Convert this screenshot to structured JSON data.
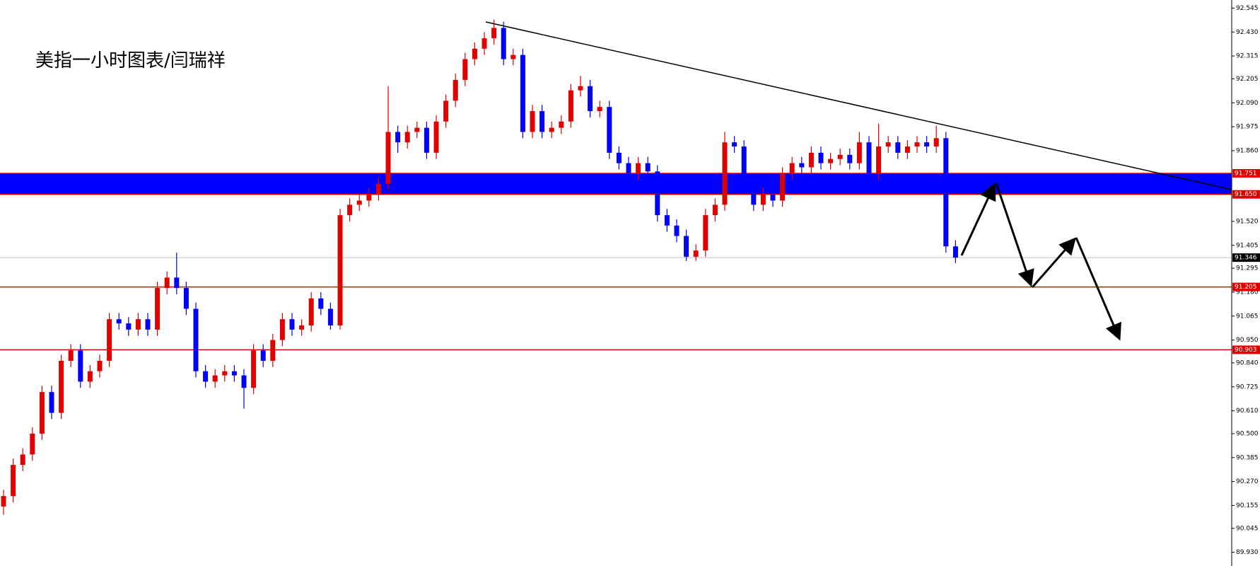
{
  "chart_data": {
    "type": "candlestick",
    "title": "美指一小时图表/闫瑞祥",
    "open": [
      90.15,
      90.2,
      90.35,
      90.4,
      90.5,
      90.7,
      90.6,
      90.85,
      90.9,
      90.75,
      90.8,
      90.85,
      91.05,
      91.03,
      91.0,
      91.05,
      91.0,
      91.2,
      91.25,
      91.2,
      91.1,
      90.8,
      90.75,
      90.78,
      90.8,
      90.78,
      90.72,
      90.9,
      90.85,
      90.95,
      91.05,
      91.0,
      91.02,
      91.15,
      91.1,
      91.02,
      91.55,
      91.6,
      91.62,
      91.65,
      91.7,
      91.95,
      91.9,
      91.95,
      91.97,
      91.85,
      92.0,
      92.1,
      92.2,
      92.3,
      92.35,
      92.4,
      92.45,
      92.3,
      92.32,
      91.95,
      92.05,
      91.95,
      91.97,
      92.0,
      92.15,
      92.17,
      92.05,
      92.07,
      91.85,
      91.8,
      91.75,
      91.8,
      91.76,
      91.55,
      91.5,
      91.45,
      91.35,
      91.38,
      91.55,
      91.6,
      91.9,
      91.88,
      91.7,
      91.6,
      91.65,
      91.62,
      91.75,
      91.8,
      91.78,
      91.85,
      91.8,
      91.82,
      91.84,
      91.8,
      91.9,
      91.75,
      91.88,
      91.9,
      91.85,
      91.88,
      91.9,
      91.88,
      91.92,
      91.4
    ],
    "high": [
      90.23,
      90.38,
      90.43,
      90.53,
      90.73,
      90.73,
      90.88,
      90.93,
      90.93,
      90.83,
      90.88,
      91.08,
      91.08,
      91.06,
      91.08,
      91.08,
      91.23,
      91.28,
      91.37,
      91.23,
      91.13,
      90.83,
      90.81,
      90.83,
      90.83,
      90.81,
      90.93,
      90.93,
      90.98,
      91.08,
      91.08,
      91.05,
      91.18,
      91.18,
      91.13,
      91.58,
      91.63,
      91.65,
      91.68,
      91.73,
      92.17,
      91.98,
      91.98,
      92.0,
      92.0,
      92.03,
      92.13,
      92.23,
      92.33,
      92.38,
      92.43,
      92.49,
      92.48,
      92.35,
      92.35,
      92.08,
      92.08,
      92.0,
      92.03,
      92.18,
      92.22,
      92.2,
      92.1,
      92.1,
      91.88,
      91.83,
      91.83,
      91.83,
      91.79,
      91.58,
      91.53,
      91.48,
      91.41,
      91.58,
      91.63,
      91.95,
      91.93,
      91.91,
      91.73,
      91.68,
      91.68,
      91.78,
      91.83,
      91.83,
      91.88,
      91.88,
      91.85,
      91.87,
      91.87,
      91.95,
      91.93,
      91.99,
      91.93,
      91.93,
      91.91,
      91.93,
      91.93,
      91.98,
      91.95,
      91.43
    ],
    "low": [
      90.11,
      90.17,
      90.32,
      90.37,
      90.47,
      90.57,
      90.57,
      90.82,
      90.72,
      90.72,
      90.77,
      90.82,
      91.0,
      90.97,
      90.97,
      90.97,
      90.97,
      91.17,
      91.17,
      91.07,
      90.77,
      90.72,
      90.72,
      90.75,
      90.75,
      90.62,
      90.69,
      90.82,
      90.82,
      90.92,
      90.97,
      90.97,
      90.99,
      91.07,
      91.0,
      91.0,
      91.52,
      91.57,
      91.59,
      91.62,
      91.67,
      91.85,
      91.87,
      91.92,
      91.82,
      91.82,
      91.97,
      92.07,
      92.17,
      92.27,
      92.32,
      92.37,
      92.27,
      92.27,
      91.92,
      91.92,
      91.92,
      91.92,
      91.94,
      91.97,
      92.12,
      92.02,
      92.02,
      91.82,
      91.77,
      91.72,
      91.72,
      91.73,
      91.52,
      91.47,
      91.42,
      91.33,
      91.33,
      91.35,
      91.52,
      91.57,
      91.85,
      91.67,
      91.57,
      91.57,
      91.59,
      91.59,
      91.72,
      91.75,
      91.75,
      91.77,
      91.77,
      91.79,
      91.77,
      91.77,
      91.66,
      91.72,
      91.85,
      91.82,
      91.82,
      91.85,
      91.85,
      91.85,
      91.37,
      91.32
    ],
    "close": [
      90.2,
      90.35,
      90.4,
      90.5,
      90.7,
      90.6,
      90.85,
      90.9,
      90.75,
      90.8,
      90.85,
      91.05,
      91.03,
      91.0,
      91.05,
      91.0,
      91.2,
      91.25,
      91.2,
      91.1,
      90.8,
      90.75,
      90.78,
      90.8,
      90.78,
      90.72,
      90.9,
      90.85,
      90.95,
      91.05,
      91.0,
      91.02,
      91.15,
      91.1,
      91.02,
      91.55,
      91.6,
      91.62,
      91.65,
      91.7,
      91.95,
      91.9,
      91.95,
      91.97,
      91.85,
      92.0,
      92.1,
      92.2,
      92.3,
      92.35,
      92.4,
      92.45,
      92.3,
      92.32,
      91.95,
      92.05,
      91.95,
      91.97,
      92.0,
      92.15,
      92.17,
      92.05,
      92.07,
      91.85,
      91.8,
      91.75,
      91.8,
      91.76,
      91.55,
      91.5,
      91.45,
      91.35,
      91.38,
      91.55,
      91.6,
      91.9,
      91.88,
      91.7,
      91.6,
      91.65,
      91.62,
      91.75,
      91.8,
      91.78,
      91.85,
      91.8,
      91.82,
      91.84,
      91.8,
      91.9,
      91.75,
      91.88,
      91.9,
      91.85,
      91.88,
      91.9,
      91.88,
      91.92,
      91.4,
      91.346
    ],
    "up_color": "#e00000",
    "down_color": "#0000ff",
    "ylim": [
      89.864,
      92.584
    ],
    "yticks": [
      92.545,
      {
        "value": 92.43,
        "label": "92.430"
      },
      92.315,
      92.205,
      {
        "value": 92.09,
        "label": "92.090"
      },
      91.975,
      {
        "value": 91.86,
        "label": "91.860"
      },
      {
        "value": 91.52,
        "label": "91.520"
      },
      91.405,
      91.295,
      {
        "value": 91.18,
        "label": "91.180"
      },
      91.065,
      {
        "value": 90.95,
        "label": "90.950"
      },
      {
        "value": 90.84,
        "label": "90.840"
      },
      90.725,
      {
        "value": 90.61,
        "label": "90.610"
      },
      {
        "value": 90.5,
        "label": "90.500"
      },
      90.385,
      {
        "value": 90.27,
        "label": "90.270"
      },
      90.155,
      90.045,
      {
        "value": 89.93,
        "label": "89.930"
      }
    ],
    "zone": {
      "top": 91.751,
      "bottom": {
        "value": 91.65,
        "label": "91.650"
      },
      "color": "#0000ff",
      "border_color": "#e00000"
    },
    "support_lines": [
      91.205,
      90.903
    ],
    "support_color": "#e00000",
    "last_price": 91.346,
    "grid": false
  }
}
